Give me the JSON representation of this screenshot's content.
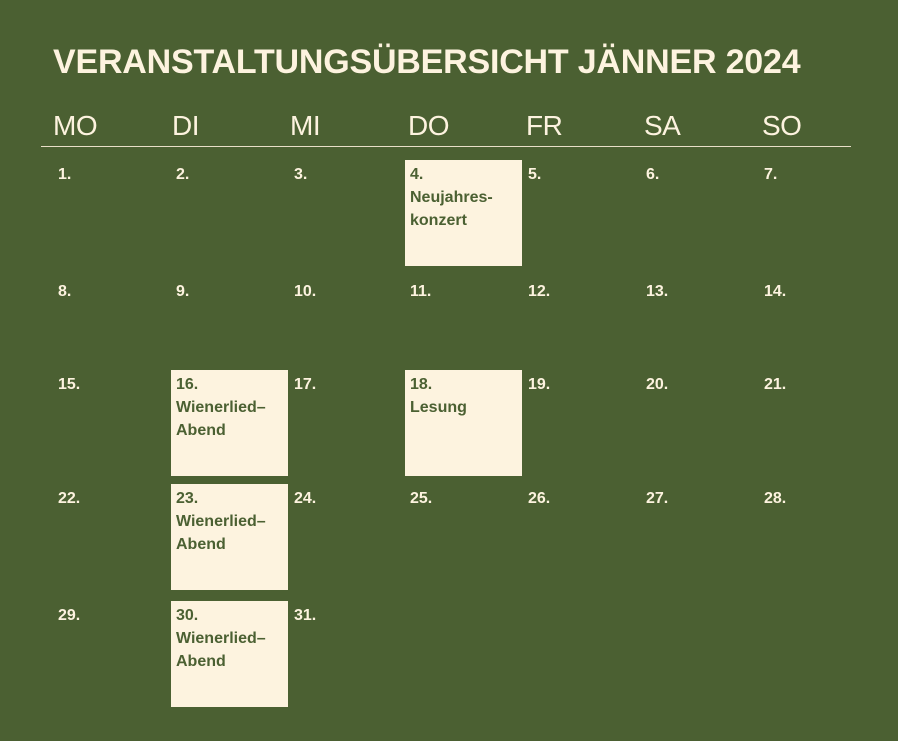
{
  "title": "VERANSTALTUNGSÜBERSICHT JÄNNER 2024",
  "weekdays": [
    "MO",
    "DI",
    "MI",
    "DO",
    "FR",
    "SA",
    "SO"
  ],
  "days": [
    {
      "num": "1.",
      "event": ""
    },
    {
      "num": "2.",
      "event": ""
    },
    {
      "num": "3.",
      "event": ""
    },
    {
      "num": "4.",
      "event": "Neujahres-\nkonzert"
    },
    {
      "num": "5.",
      "event": ""
    },
    {
      "num": "6.",
      "event": ""
    },
    {
      "num": "7.",
      "event": ""
    },
    {
      "num": "8.",
      "event": ""
    },
    {
      "num": "9.",
      "event": ""
    },
    {
      "num": "10.",
      "event": ""
    },
    {
      "num": "11.",
      "event": ""
    },
    {
      "num": "12.",
      "event": ""
    },
    {
      "num": "13.",
      "event": ""
    },
    {
      "num": "14.",
      "event": ""
    },
    {
      "num": "15.",
      "event": ""
    },
    {
      "num": "16.",
      "event": "Wienerlied–\nAbend"
    },
    {
      "num": "17.",
      "event": ""
    },
    {
      "num": "18.",
      "event": "Lesung"
    },
    {
      "num": "19.",
      "event": ""
    },
    {
      "num": "20.",
      "event": ""
    },
    {
      "num": "21.",
      "event": ""
    },
    {
      "num": "22.",
      "event": ""
    },
    {
      "num": "23.",
      "event": "Wienerlied–\nAbend"
    },
    {
      "num": "24.",
      "event": ""
    },
    {
      "num": "25.",
      "event": ""
    },
    {
      "num": "26.",
      "event": ""
    },
    {
      "num": "27.",
      "event": ""
    },
    {
      "num": "28.",
      "event": ""
    },
    {
      "num": "29.",
      "event": ""
    },
    {
      "num": "30.",
      "event": "Wienerlied–\nAbend"
    },
    {
      "num": "31.",
      "event": ""
    }
  ],
  "colors": {
    "background": "#4b6032",
    "cream": "#fdf3df"
  }
}
